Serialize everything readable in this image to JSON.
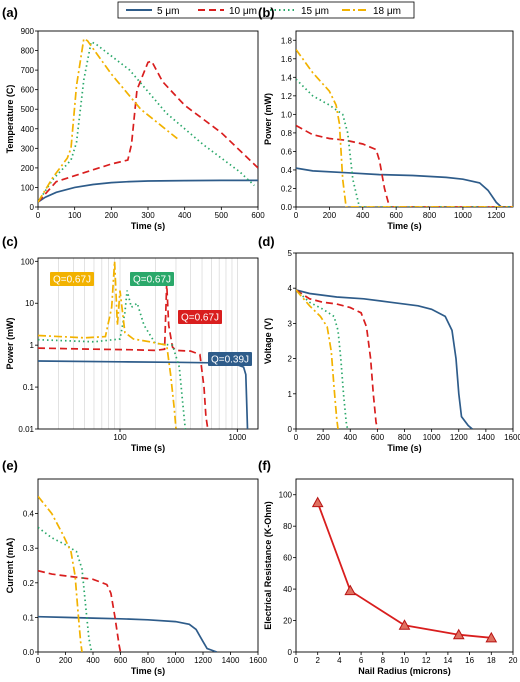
{
  "legend": [
    {
      "name": "5 μm",
      "color": "#2e5c8a",
      "dash": "solid"
    },
    {
      "name": "10 μm",
      "color": "#d91e1e",
      "dash": "dash"
    },
    {
      "name": "15 μm",
      "color": "#2aa86a",
      "dash": "dot"
    },
    {
      "name": "18 μm",
      "color": "#f2b200",
      "dash": "dashdot"
    }
  ],
  "chart_data": [
    {
      "panel": "(a)",
      "type": "line",
      "xlabel": "Time (s)",
      "ylabel": "Temperature (C)",
      "xlim": [
        0,
        600
      ],
      "ylim": [
        0,
        900
      ],
      "xticks": [
        0,
        100,
        200,
        300,
        400,
        500,
        600
      ],
      "yticks": [
        0,
        100,
        200,
        300,
        400,
        500,
        600,
        700,
        800,
        900
      ],
      "series": [
        {
          "name": "5 μm",
          "x": [
            0,
            20,
            50,
            100,
            150,
            200,
            250,
            300,
            400,
            500,
            600
          ],
          "y": [
            25,
            50,
            75,
            100,
            115,
            125,
            130,
            133,
            135,
            136,
            136
          ]
        },
        {
          "name": "10 μm",
          "x": [
            0,
            50,
            100,
            200,
            245,
            255,
            270,
            300,
            310,
            340,
            400,
            500,
            600
          ],
          "y": [
            25,
            130,
            160,
            220,
            240,
            320,
            600,
            740,
            745,
            640,
            520,
            380,
            200
          ]
        },
        {
          "name": "15 μm",
          "x": [
            0,
            40,
            90,
            105,
            125,
            145,
            160,
            250,
            350,
            450,
            550,
            590
          ],
          "y": [
            25,
            140,
            240,
            330,
            650,
            845,
            830,
            700,
            480,
            320,
            180,
            110
          ]
        },
        {
          "name": "18 μm",
          "x": [
            0,
            40,
            80,
            90,
            105,
            125,
            135,
            200,
            280,
            380
          ],
          "y": [
            25,
            150,
            250,
            300,
            620,
            860,
            850,
            680,
            500,
            350
          ]
        }
      ]
    },
    {
      "panel": "(b)",
      "type": "line",
      "xlabel": "Time (s)",
      "ylabel": "Power (mW)",
      "xlim": [
        0,
        1300
      ],
      "ylim": [
        0,
        1.9
      ],
      "xticks": [
        0,
        200,
        400,
        600,
        800,
        1000,
        1200
      ],
      "yticks": [
        0.0,
        0.2,
        0.4,
        0.6,
        0.8,
        1.0,
        1.2,
        1.4,
        1.6,
        1.8
      ],
      "series": [
        {
          "name": "5 μm",
          "x": [
            0,
            100,
            300,
            500,
            700,
            900,
            1000,
            1100,
            1150,
            1200,
            1230,
            1300
          ],
          "y": [
            0.42,
            0.39,
            0.37,
            0.35,
            0.34,
            0.32,
            0.3,
            0.26,
            0.18,
            0.05,
            0,
            0
          ]
        },
        {
          "name": "10 μm",
          "x": [
            0,
            100,
            200,
            300,
            400,
            480,
            500,
            530,
            560,
            1300
          ],
          "y": [
            0.88,
            0.78,
            0.74,
            0.72,
            0.68,
            0.62,
            0.5,
            0.2,
            0,
            0
          ]
        },
        {
          "name": "15 μm",
          "x": [
            0,
            100,
            200,
            280,
            310,
            340,
            380,
            1300
          ],
          "y": [
            1.38,
            1.2,
            1.1,
            1.0,
            0.8,
            0.3,
            0,
            0
          ]
        },
        {
          "name": "18 μm",
          "x": [
            0,
            100,
            200,
            240,
            260,
            280,
            300,
            1300
          ],
          "y": [
            1.7,
            1.45,
            1.25,
            1.1,
            0.9,
            0.3,
            0,
            0
          ]
        }
      ]
    },
    {
      "panel": "(c)",
      "type": "line",
      "xlabel": "Time (s)",
      "ylabel": "Power (mW)",
      "xscale": "log",
      "yscale": "log",
      "xlim": [
        20,
        1500
      ],
      "ylim": [
        0.01,
        120
      ],
      "xticks": [
        100,
        1000
      ],
      "yticks": [
        0.01,
        0.1,
        1,
        10,
        100
      ],
      "annotations": [
        {
          "text": "Q=0.67J",
          "series": "18 μm"
        },
        {
          "text": "Q=0.67J",
          "series": "15 μm"
        },
        {
          "text": "Q=0.67J",
          "series": "10 μm"
        },
        {
          "text": "Q=0.39J",
          "series": "5 μm"
        }
      ],
      "series": [
        {
          "name": "5 μm",
          "x": [
            20,
            100,
            300,
            600,
            1000,
            1130,
            1180,
            1200,
            1220
          ],
          "y": [
            0.42,
            0.4,
            0.39,
            0.38,
            0.34,
            0.3,
            0.2,
            0.05,
            0.01
          ]
        },
        {
          "name": "10 μm",
          "x": [
            20,
            60,
            120,
            200,
            240,
            250,
            260,
            280,
            300,
            400,
            480,
            520,
            540,
            560
          ],
          "y": [
            0.85,
            0.8,
            0.78,
            0.75,
            0.8,
            30,
            3,
            0.9,
            0.75,
            0.72,
            0.6,
            0.1,
            0.02,
            0.01
          ]
        },
        {
          "name": "15 μm",
          "x": [
            20,
            60,
            100,
            110,
            115,
            125,
            140,
            160,
            200,
            280,
            320,
            340,
            360
          ],
          "y": [
            1.35,
            1.2,
            1.4,
            6,
            20,
            8,
            10,
            3,
            1.1,
            1.0,
            0.3,
            0.05,
            0.01
          ]
        },
        {
          "name": "18 μm",
          "x": [
            20,
            50,
            75,
            85,
            90,
            95,
            100,
            110,
            130,
            180,
            250,
            270,
            290,
            300
          ],
          "y": [
            1.7,
            1.5,
            1.6,
            8,
            100,
            3,
            20,
            2,
            1.4,
            1.2,
            1.0,
            0.2,
            0.03,
            0.01
          ]
        }
      ]
    },
    {
      "panel": "(d)",
      "type": "line",
      "xlabel": "Time (s)",
      "ylabel": "Voltage (V)",
      "xlim": [
        0,
        1600
      ],
      "ylim": [
        0,
        5
      ],
      "xticks": [
        0,
        200,
        400,
        600,
        800,
        1000,
        1200,
        1400,
        1600
      ],
      "yticks": [
        0,
        1,
        2,
        3,
        4,
        5
      ],
      "series": [
        {
          "name": "5 μm",
          "x": [
            0,
            100,
            300,
            500,
            700,
            900,
            1000,
            1100,
            1150,
            1180,
            1200,
            1220,
            1270,
            1300
          ],
          "y": [
            3.95,
            3.85,
            3.75,
            3.7,
            3.6,
            3.5,
            3.4,
            3.2,
            2.8,
            2.0,
            1.0,
            0.35,
            0.1,
            0
          ]
        },
        {
          "name": "10 μm",
          "x": [
            0,
            100,
            200,
            300,
            400,
            480,
            520,
            550,
            570,
            590,
            600
          ],
          "y": [
            3.95,
            3.7,
            3.6,
            3.55,
            3.45,
            3.3,
            2.9,
            2.0,
            1.0,
            0.2,
            0
          ]
        },
        {
          "name": "15 μm",
          "x": [
            0,
            100,
            200,
            280,
            310,
            330,
            350,
            370,
            380
          ],
          "y": [
            3.95,
            3.6,
            3.4,
            3.2,
            2.8,
            2.0,
            1.0,
            0.2,
            0
          ]
        },
        {
          "name": "18 μm",
          "x": [
            0,
            100,
            180,
            230,
            260,
            280,
            300,
            310
          ],
          "y": [
            3.95,
            3.5,
            3.2,
            2.9,
            2.2,
            1.2,
            0.3,
            0
          ]
        }
      ]
    },
    {
      "panel": "(e)",
      "type": "line",
      "xlabel": "Time (s)",
      "ylabel": "Current (mA)",
      "xlim": [
        0,
        1600
      ],
      "ylim": [
        0,
        0.5
      ],
      "xticks": [
        0,
        200,
        400,
        600,
        800,
        1000,
        1200,
        1400,
        1600
      ],
      "yticks": [
        0.0,
        0.1,
        0.2,
        0.3,
        0.4
      ],
      "series": [
        {
          "name": "5 μm",
          "x": [
            0,
            200,
            400,
            600,
            800,
            1000,
            1100,
            1150,
            1200,
            1230,
            1280,
            1300
          ],
          "y": [
            0.102,
            0.1,
            0.098,
            0.096,
            0.093,
            0.088,
            0.08,
            0.065,
            0.03,
            0.01,
            0.003,
            0
          ]
        },
        {
          "name": "10 μm",
          "x": [
            0,
            100,
            200,
            300,
            400,
            500,
            530,
            560,
            590,
            600
          ],
          "y": [
            0.235,
            0.225,
            0.22,
            0.215,
            0.21,
            0.195,
            0.17,
            0.1,
            0.02,
            0
          ]
        },
        {
          "name": "15 μm",
          "x": [
            0,
            100,
            200,
            280,
            320,
            350,
            370,
            390
          ],
          "y": [
            0.36,
            0.33,
            0.31,
            0.29,
            0.24,
            0.12,
            0.04,
            0
          ]
        },
        {
          "name": "18 μm",
          "x": [
            0,
            100,
            180,
            240,
            270,
            290,
            310,
            320
          ],
          "y": [
            0.45,
            0.4,
            0.34,
            0.29,
            0.22,
            0.12,
            0.03,
            0
          ]
        }
      ]
    },
    {
      "panel": "(f)",
      "type": "scatter",
      "xlabel": "Nail Radius (microns)",
      "ylabel": "Electrical Resistance (K-Ohm)",
      "xlim": [
        0,
        20
      ],
      "ylim": [
        0,
        110
      ],
      "xticks": [
        0,
        2,
        4,
        6,
        8,
        10,
        12,
        14,
        16,
        18,
        20
      ],
      "yticks": [
        0,
        20,
        40,
        60,
        80,
        100
      ],
      "series": [
        {
          "x": [
            2,
            5,
            10,
            15,
            18
          ],
          "y": [
            95,
            39,
            17,
            11,
            9
          ]
        }
      ]
    }
  ]
}
